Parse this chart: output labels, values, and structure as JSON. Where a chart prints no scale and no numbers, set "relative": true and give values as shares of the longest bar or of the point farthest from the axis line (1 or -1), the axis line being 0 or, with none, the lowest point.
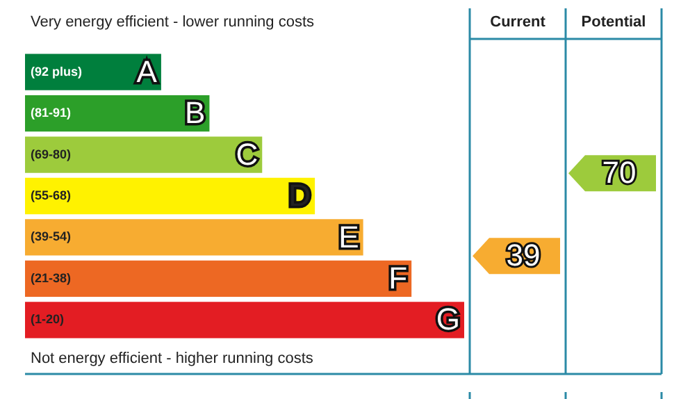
{
  "chart_data": {
    "type": "bar",
    "orientation": "horizontal",
    "relative": true,
    "categories": [
      "(92 plus)",
      "(81-91)",
      "(69-80)",
      "(55-68)",
      "(39-54)",
      "(21-38)",
      "(1-20)"
    ],
    "values": [
      0.31,
      0.42,
      0.54,
      0.66,
      0.77,
      0.88,
      1
    ],
    "colors": [
      "#007f3d",
      "#2c9f29",
      "#9dcb3c",
      "#fff200",
      "#f7ac31",
      "#ed6823",
      "#e31d23"
    ],
    "annotations": [
      "Very energy efficient - lower running costs",
      "Not energy efficient - higher running costs",
      "Current",
      "Potential",
      "39",
      "70",
      {
        "text": "A",
        "x": 0.31,
        "y": "(92 plus)"
      },
      {
        "text": "B",
        "x": 0.42,
        "y": "(81-91)"
      },
      {
        "text": "C",
        "x": 0.54,
        "y": "(69-80)"
      },
      {
        "text": "D",
        "x": 0.66,
        "y": "(55-68)"
      },
      {
        "text": "E",
        "x": 0.77,
        "y": "(39-54)"
      },
      {
        "text": "F",
        "x": 0.88,
        "y": "(21-38)"
      },
      {
        "text": "G",
        "x": 1,
        "y": "(1-20)"
      }
    ],
    "legend": false
  }
}
